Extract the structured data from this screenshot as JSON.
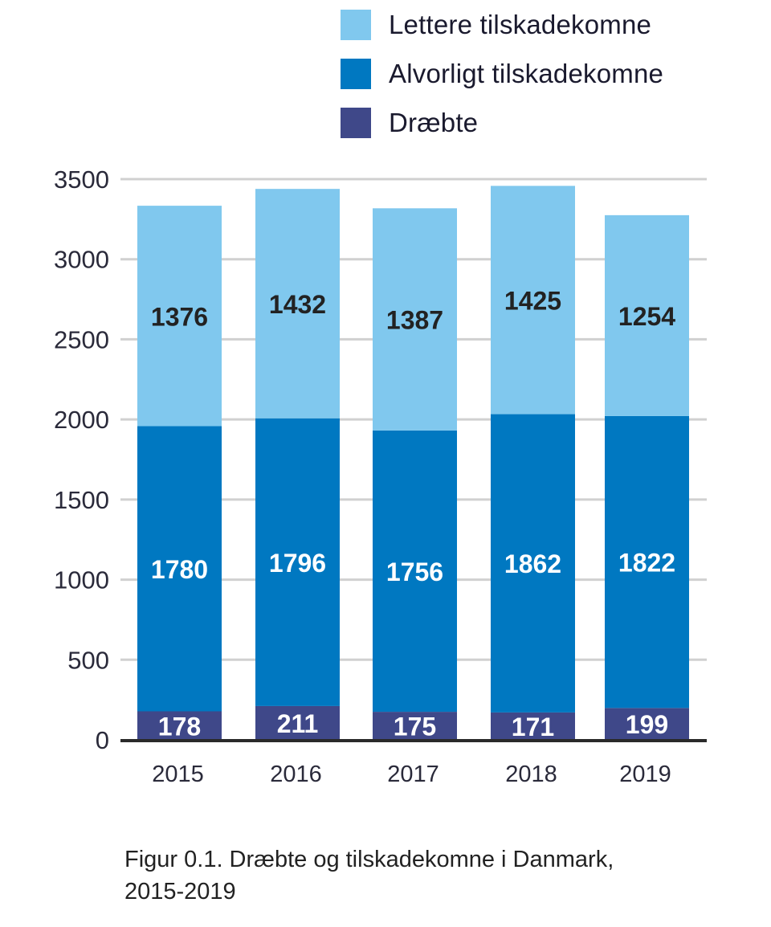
{
  "chart_data": {
    "type": "bar",
    "stacked": true,
    "title": "",
    "xlabel": "",
    "ylabel": "",
    "categories": [
      "2015",
      "2016",
      "2017",
      "2018",
      "2019"
    ],
    "series": [
      {
        "name": "Dræbte",
        "color": "#3f4889",
        "label_color": "#ffffff",
        "values": [
          178,
          211,
          175,
          171,
          199
        ]
      },
      {
        "name": "Alvorligt tilskadekomne",
        "color": "#0078c1",
        "label_color": "#ffffff",
        "values": [
          1780,
          1796,
          1756,
          1862,
          1822
        ]
      },
      {
        "name": "Lettere tilskadekomne",
        "color": "#80c8ee",
        "label_color": "#222222",
        "values": [
          1376,
          1432,
          1387,
          1425,
          1254
        ]
      }
    ],
    "ylim": [
      0,
      3500
    ],
    "yticks": [
      0,
      500,
      1000,
      1500,
      2000,
      2500,
      3000,
      3500
    ],
    "grid": true,
    "legend_position": "top-right",
    "legend_order": [
      "Lettere tilskadekomne",
      "Alvorligt tilskadekomne",
      "Dræbte"
    ]
  },
  "caption": {
    "line1": "Figur 0.1. Dræbte og tilskadekomne i Danmark,",
    "line2": "2015-2019"
  }
}
